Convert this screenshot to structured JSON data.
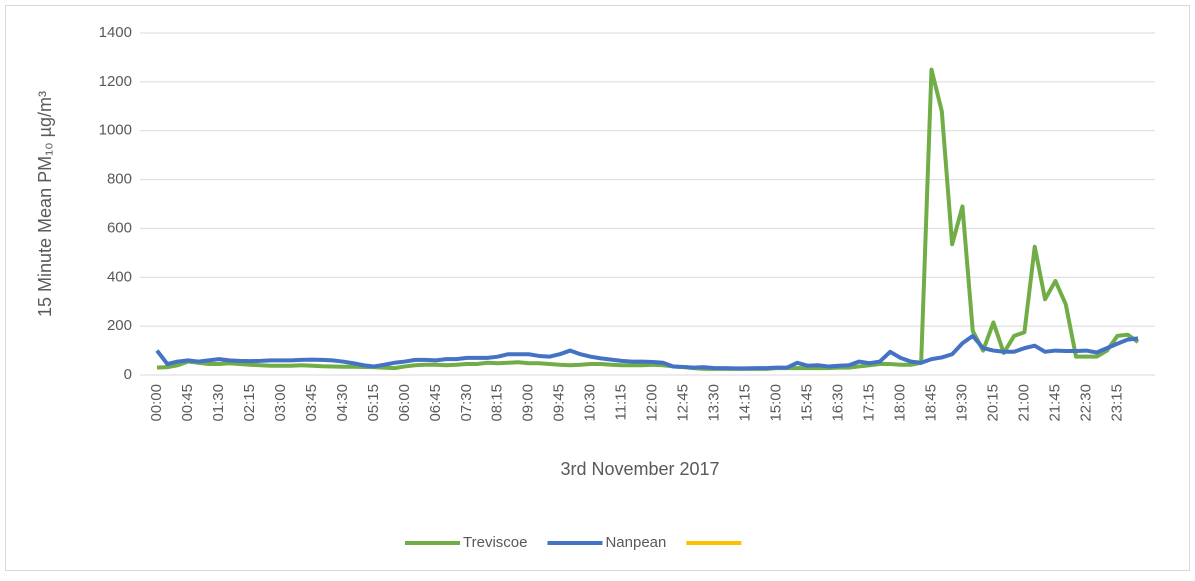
{
  "chart_data": {
    "type": "line",
    "ylabel": "15 Minute Mean PM₁₀ µg/m³",
    "xlabel": "3rd November 2017",
    "categories": [
      "00:00",
      null,
      null,
      "00:45",
      null,
      null,
      "01:30",
      null,
      null,
      "02:15",
      null,
      null,
      "03:00",
      null,
      null,
      "03:45",
      null,
      null,
      "04:30",
      null,
      null,
      "05:15",
      null,
      null,
      "06:00",
      null,
      null,
      "06:45",
      null,
      null,
      "07:30",
      null,
      null,
      "08:15",
      null,
      null,
      "09:00",
      null,
      null,
      "09:45",
      null,
      null,
      "10:30",
      null,
      null,
      "11:15",
      null,
      null,
      "12:00",
      null,
      null,
      "12:45",
      null,
      null,
      "13:30",
      null,
      null,
      "14:15",
      null,
      null,
      "15:00",
      null,
      null,
      "15:45",
      null,
      null,
      "16:30",
      null,
      null,
      "17:15",
      null,
      null,
      "18:00",
      null,
      null,
      "18:45",
      null,
      null,
      "19:30",
      null,
      null,
      "20:15",
      null,
      null,
      "21:00",
      null,
      null,
      "21:45",
      null,
      null,
      "22:30",
      null,
      null,
      "23:15",
      null,
      null
    ],
    "series": [
      {
        "name": "Treviscoe",
        "color": "#70ad47",
        "values": [
          30,
          32,
          40,
          55,
          50,
          45,
          45,
          48,
          45,
          42,
          40,
          38,
          38,
          38,
          40,
          38,
          36,
          35,
          34,
          34,
          33,
          32,
          30,
          28,
          35,
          40,
          42,
          42,
          40,
          42,
          45,
          45,
          50,
          48,
          50,
          52,
          48,
          48,
          45,
          42,
          40,
          42,
          45,
          45,
          42,
          40,
          40,
          40,
          42,
          40,
          35,
          32,
          28,
          25,
          25,
          25,
          25,
          25,
          25,
          25,
          28,
          28,
          28,
          28,
          28,
          28,
          30,
          30,
          35,
          40,
          45,
          45,
          42,
          42,
          50,
          1250,
          1080,
          535,
          690,
          180,
          100,
          215,
          90,
          160,
          175,
          525,
          310,
          385,
          290,
          75,
          75,
          75,
          100,
          160,
          165,
          135
        ]
      },
      {
        "name": "Nanpean",
        "color": "#4472c4",
        "values": [
          100,
          45,
          55,
          60,
          55,
          60,
          65,
          60,
          58,
          57,
          58,
          60,
          60,
          60,
          62,
          63,
          62,
          60,
          55,
          48,
          40,
          35,
          42,
          50,
          55,
          62,
          62,
          60,
          65,
          65,
          70,
          70,
          70,
          75,
          85,
          85,
          85,
          78,
          75,
          85,
          100,
          85,
          75,
          68,
          63,
          58,
          55,
          55,
          53,
          50,
          35,
          33,
          30,
          32,
          28,
          28,
          27,
          27,
          28,
          28,
          30,
          30,
          50,
          38,
          40,
          35,
          38,
          40,
          55,
          48,
          55,
          95,
          70,
          55,
          50,
          65,
          72,
          85,
          130,
          160,
          110,
          100,
          95,
          95,
          110,
          120,
          95,
          100,
          98,
          98,
          100,
          92,
          110,
          128,
          145,
          150
        ]
      },
      {
        "name": null,
        "color": "#ffc000",
        "values": [
          null,
          null,
          null,
          null,
          null,
          null,
          null,
          null,
          null,
          null,
          null,
          null,
          null,
          null,
          null,
          null,
          null,
          null,
          null,
          null,
          null,
          null,
          null,
          null,
          null,
          null,
          null,
          null,
          null,
          null,
          null,
          null,
          null,
          null,
          null,
          null,
          null,
          null,
          null,
          null,
          null,
          null,
          null,
          null,
          null,
          null,
          null,
          null,
          null,
          null,
          null,
          null,
          null,
          null,
          null,
          null,
          null,
          null,
          null,
          null,
          null,
          null,
          null,
          null,
          null,
          null,
          null,
          null,
          null,
          null,
          null,
          null,
          null,
          null,
          null,
          null,
          null,
          null,
          null,
          null,
          null,
          null,
          null,
          null,
          null,
          null,
          null,
          null,
          null,
          null,
          null,
          null,
          null,
          null,
          null,
          null
        ]
      }
    ],
    "ylim": [
      0,
      1400
    ],
    "yticks": [
      0,
      200,
      400,
      600,
      800,
      1000,
      1200,
      1400
    ],
    "grid": true,
    "legend": "bottom"
  }
}
